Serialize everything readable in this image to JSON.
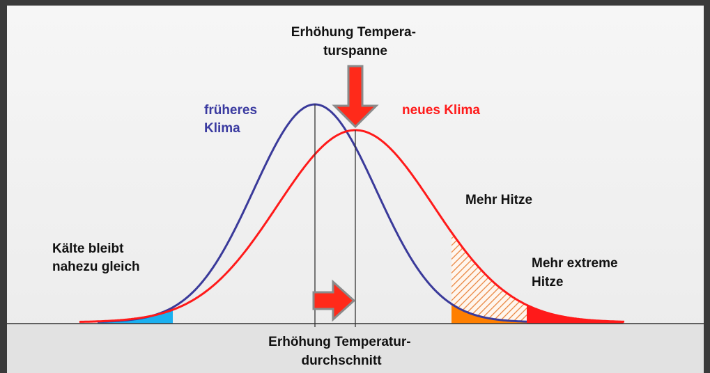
{
  "labels": {
    "spread": [
      "Erhöhung Tempera-",
      "turspanne"
    ],
    "old_climate": [
      "früheres",
      "Klima"
    ],
    "new_climate": [
      "neues Klima"
    ],
    "more_heat": [
      "Mehr Hitze"
    ],
    "cold": [
      "Kälte bleibt",
      "nahezu gleich"
    ],
    "extreme_heat": [
      "Mehr extreme",
      "Hitze"
    ],
    "mean": [
      "Erhöhung Temperatur-",
      "durchschnitt"
    ]
  }
}
